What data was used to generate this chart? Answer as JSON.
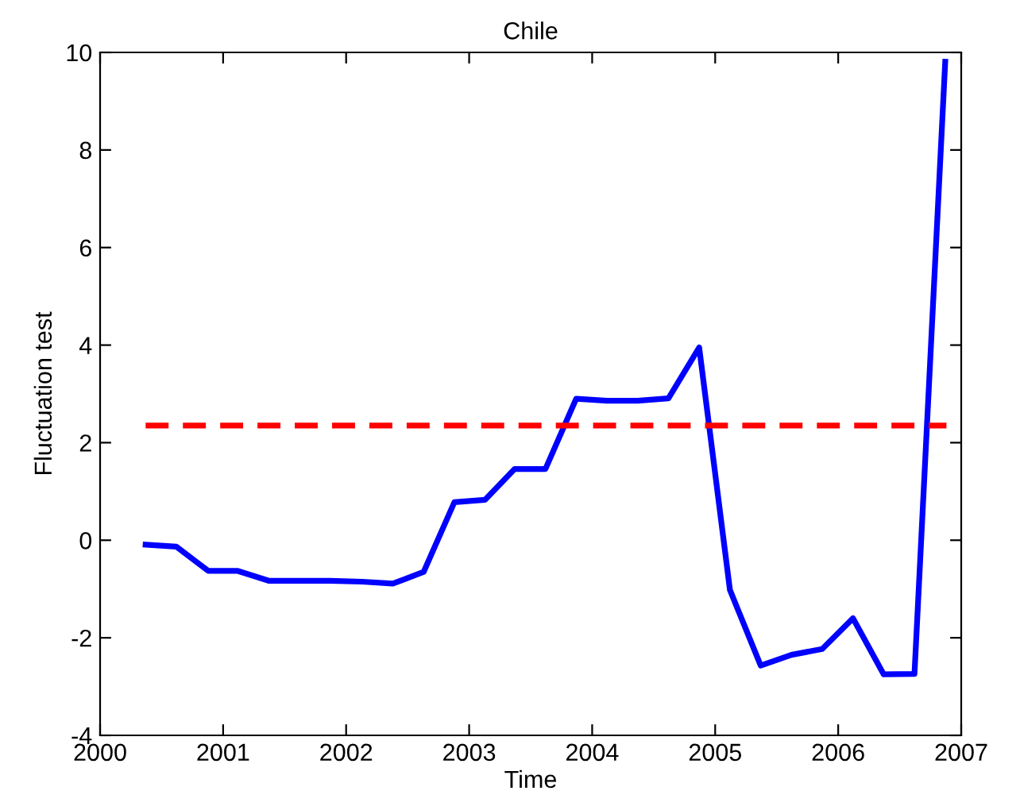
{
  "chart_data": {
    "type": "line",
    "title": "Chile",
    "xlabel": "Time",
    "ylabel": "Fluctuation test",
    "xlim": [
      2000,
      2007
    ],
    "xticks": [
      2000,
      2001,
      2002,
      2003,
      2004,
      2005,
      2006,
      2007
    ],
    "ylim": [
      -4,
      10
    ],
    "yticks": [
      -4,
      -2,
      0,
      2,
      4,
      6,
      8,
      10
    ],
    "grid": false,
    "series": [
      {
        "color": "#0000ff",
        "line_style": "solid",
        "x": [
          2000.37,
          2000.62,
          2000.88,
          2001.12,
          2001.37,
          2001.62,
          2001.87,
          2002.13,
          2002.38,
          2002.63,
          2002.88,
          2003.13,
          2003.37,
          2003.62,
          2003.87,
          2004.12,
          2004.37,
          2004.62,
          2004.87,
          2005.12,
          2005.37,
          2005.62,
          2005.87,
          2006.12,
          2006.37,
          2006.62,
          2006.87
        ],
        "values": [
          -0.09,
          -0.13,
          -0.63,
          -0.63,
          -0.83,
          -0.83,
          -0.83,
          -0.85,
          -0.89,
          -0.65,
          0.78,
          0.83,
          1.46,
          1.46,
          2.9,
          2.86,
          2.86,
          2.91,
          3.95,
          -1.02,
          -2.57,
          -2.35,
          -2.23,
          -1.6,
          -2.75,
          -2.74,
          9.81
        ]
      },
      {
        "color": "#ff0000",
        "line_style": "dashed",
        "x": [
          2000.37,
          2006.88
        ],
        "values": [
          2.35,
          2.35
        ]
      }
    ]
  }
}
